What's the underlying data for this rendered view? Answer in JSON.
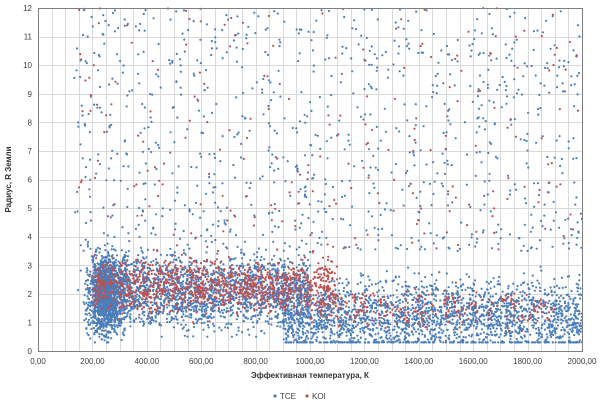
{
  "chart_data": {
    "type": "scatter",
    "title": "",
    "xlabel": "Эффективная температура, К",
    "ylabel": "Радиус, R Земли",
    "xlim": [
      0,
      2000
    ],
    "ylim": [
      0,
      12
    ],
    "x_ticks": [
      0,
      200,
      400,
      600,
      800,
      1000,
      1200,
      1400,
      1600,
      1800,
      2000
    ],
    "x_tick_labels": [
      "0,00",
      "200,00",
      "400,00",
      "600,00",
      "800,00",
      "1000,00",
      "1200,00",
      "1400,00",
      "1600,00",
      "1800,00",
      "2000,00"
    ],
    "y_ticks": [
      0,
      1,
      2,
      3,
      4,
      5,
      6,
      7,
      8,
      9,
      10,
      11,
      12
    ],
    "y_tick_labels": [
      "0",
      "1",
      "2",
      "3",
      "4",
      "5",
      "6",
      "7",
      "8",
      "9",
      "10",
      "11",
      "12"
    ],
    "minor_x_step": 50,
    "grid": true,
    "legend_position": "bottom-center",
    "series": [
      {
        "name": "TCE",
        "color": "#4a7ebb",
        "marker": "dot",
        "clusters": [
          {
            "x": [
              130,
              340
            ],
            "y": [
              0.3,
              4.3
            ],
            "center": [
              250,
              2.0
            ],
            "count": 1500,
            "shape": "dense-core"
          },
          {
            "x": [
              300,
              1000
            ],
            "y": [
              0.5,
              4.0
            ],
            "center": [
              600,
              2.1
            ],
            "count": 1800,
            "shape": "band"
          },
          {
            "x": [
              900,
              2000
            ],
            "y": [
              0.3,
              3.8
            ],
            "center": [
              1500,
              1.2
            ],
            "count": 2200,
            "shape": "band"
          },
          {
            "x": [
              130,
              2000
            ],
            "y": [
              3.5,
              12
            ],
            "count": 900,
            "shape": "sparse"
          }
        ]
      },
      {
        "name": "KOI",
        "color": "#c0504d",
        "marker": "dot",
        "clusters": [
          {
            "x": [
              200,
              1100
            ],
            "y": [
              1.0,
              3.5
            ],
            "center": [
              600,
              2.3
            ],
            "count": 1100,
            "shape": "band"
          },
          {
            "x": [
              1000,
              1900
            ],
            "y": [
              0.7,
              2.5
            ],
            "center": [
              1300,
              1.5
            ],
            "count": 250,
            "shape": "band"
          },
          {
            "x": [
              150,
              2000
            ],
            "y": [
              3.5,
              12
            ],
            "count": 220,
            "shape": "sparse"
          }
        ]
      }
    ]
  }
}
